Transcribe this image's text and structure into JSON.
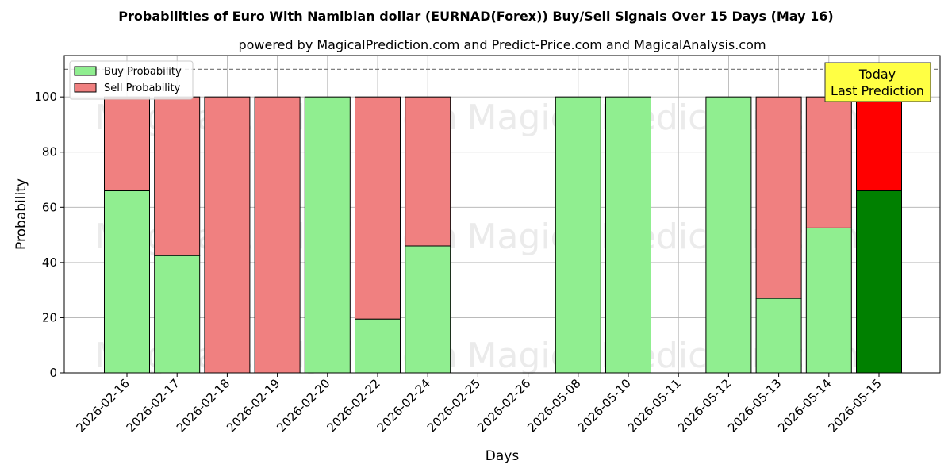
{
  "chart_data": {
    "type": "bar",
    "title": "Probabilities of Euro With Namibian dollar (EURNAD(Forex)) Buy/Sell Signals Over 15 Days (May 16)",
    "subtitle": "powered by MagicalPrediction.com and Predict-Price.com and MagicalAnalysis.com",
    "xlabel": "Days",
    "ylabel": "Probability",
    "ylim": [
      0,
      115
    ],
    "yticks": [
      0,
      20,
      40,
      60,
      80,
      100
    ],
    "reference_line": 110,
    "grid": true,
    "stacked": true,
    "legend_position": "top-left",
    "categories": [
      "2026-02-16",
      "2026-02-17",
      "2026-02-18",
      "2026-02-19",
      "2026-02-20",
      "2026-02-22",
      "2026-02-24",
      "2026-02-25",
      "2026-02-26",
      "2026-05-08",
      "2026-05-10",
      "2026-05-11",
      "2026-05-12",
      "2026-05-13",
      "2026-05-14",
      "2026-05-15"
    ],
    "series": [
      {
        "name": "Buy Probability",
        "color": "#90ee90",
        "highlight_color": "#008000",
        "values": [
          66,
          42.5,
          0,
          0,
          100,
          19.5,
          46,
          null,
          null,
          100,
          100,
          null,
          100,
          27,
          52.5,
          66
        ]
      },
      {
        "name": "Sell Probability",
        "color": "#f08080",
        "highlight_color": "#ff0000",
        "values": [
          34,
          57.5,
          100,
          100,
          0,
          80.5,
          54,
          null,
          null,
          0,
          0,
          null,
          0,
          73,
          47.5,
          34
        ]
      }
    ],
    "highlight_index": 15,
    "annotation": {
      "lines": [
        "Today",
        "Last Prediction"
      ],
      "background": "#ffff44"
    },
    "watermarks": [
      "MagicalAnalysis.com",
      "MagicalPrediction.com"
    ]
  }
}
